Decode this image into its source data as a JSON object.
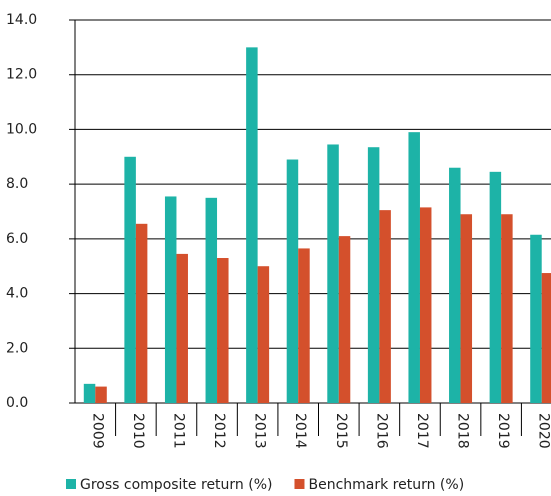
{
  "chart_data": {
    "type": "bar",
    "categories": [
      "2009",
      "2010",
      "2011",
      "2012",
      "2013",
      "2014",
      "2015",
      "2016",
      "2017",
      "2018",
      "2019",
      "2020"
    ],
    "series": [
      {
        "name": "Gross composite return (%)",
        "color": "#1db3a7",
        "values": [
          0.7,
          9.0,
          7.55,
          7.5,
          13.0,
          8.9,
          9.45,
          9.35,
          9.9,
          8.6,
          8.45,
          6.15
        ]
      },
      {
        "name": "Benchmark return (%)",
        "color": "#d4502c",
        "values": [
          0.6,
          6.55,
          5.45,
          5.3,
          5.0,
          5.65,
          6.1,
          7.05,
          7.15,
          6.9,
          6.9,
          4.75
        ]
      }
    ],
    "ylim": [
      0,
      14
    ],
    "yticks": [
      {
        "value": 0,
        "label": "0.0"
      },
      {
        "value": 2,
        "label": "2.0"
      },
      {
        "value": 4,
        "label": "4.0"
      },
      {
        "value": 6,
        "label": "6.0"
      },
      {
        "value": 8,
        "label": "8.0"
      },
      {
        "value": 10,
        "label": "10.0"
      },
      {
        "value": 12,
        "label": "12.0"
      },
      {
        "value": 14,
        "label": "14.0"
      }
    ],
    "grid": true
  }
}
